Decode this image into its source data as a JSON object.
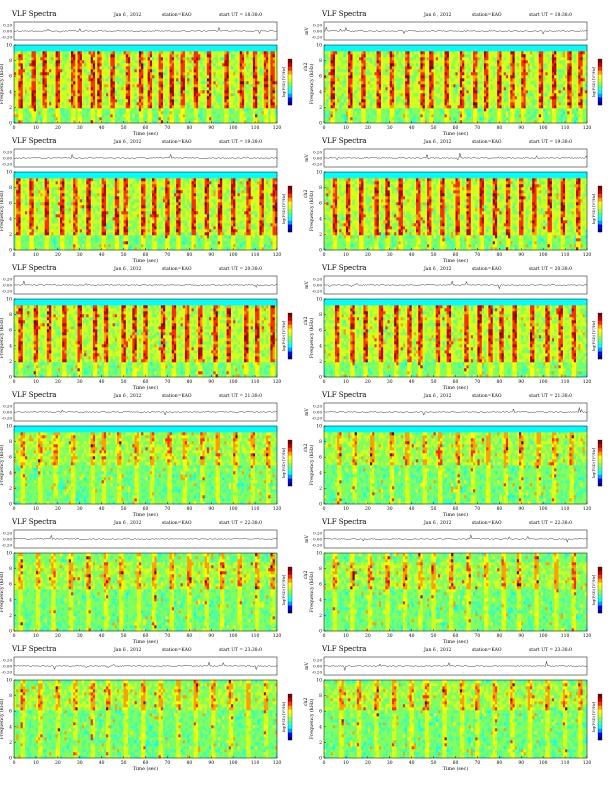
{
  "page_title": "VLF Spectra",
  "colors": {
    "colormap": [
      "#00007f",
      "#0000ff",
      "#00a0ff",
      "#00ffff",
      "#40ffb0",
      "#80ff60",
      "#d0ff20",
      "#ffff00",
      "#ffa000",
      "#ff3000",
      "#c00000",
      "#7f0000"
    ],
    "background_band": "#3cd0e8",
    "trace": "#000000"
  },
  "chart_data": [
    {
      "type": "heatmap",
      "title": "VLF Spectra",
      "date": "Jan 6 , 2012",
      "station": "station=KAO",
      "start": "start UT = 18:38:0",
      "xlabel": "Time (sec)",
      "ylabel": "Frequency (kHz)",
      "top_ylabel": "mV",
      "top_ticks": [
        "0.20",
        "0.00",
        "-0.20"
      ],
      "side_label": "ch1",
      "colorbar_label": "log(PSD) [V²/Hz]",
      "xlim": [
        0,
        120
      ],
      "ylim": [
        0,
        10
      ],
      "xticks": [
        0,
        10,
        20,
        30,
        40,
        50,
        60,
        70,
        80,
        90,
        100,
        110,
        120
      ],
      "yticks": [
        0,
        2,
        4,
        6,
        8,
        10
      ],
      "active_upper_kHz": 9.4,
      "dominant_band_kHz": [
        2.0,
        9.4
      ],
      "event_times_sec": [
        3,
        9,
        14,
        20,
        27,
        30,
        36,
        39,
        45,
        52,
        58,
        62,
        67,
        72,
        77,
        83,
        89,
        97,
        104,
        110,
        115,
        118
      ],
      "intensity": "high"
    },
    {
      "type": "heatmap",
      "title": "VLF Spectra",
      "date": "Jan 6 , 2012",
      "station": "station=KAO",
      "start": "start UT = 18:38:0",
      "xlabel": "Time (sec)",
      "ylabel": "Frequency (kHz)",
      "top_ylabel": "mV",
      "top_ticks": [
        "0.20",
        "0.00",
        "-0.20"
      ],
      "side_label": "ch2",
      "colorbar_label": "log(PSD) [V²/Hz]",
      "xlim": [
        0,
        120
      ],
      "ylim": [
        0,
        10
      ],
      "xticks": [
        0,
        10,
        20,
        30,
        40,
        50,
        60,
        70,
        80,
        90,
        100,
        110,
        120
      ],
      "yticks": [
        0,
        2,
        4,
        6,
        8,
        10
      ],
      "active_upper_kHz": 9.4,
      "dominant_band_kHz": [
        2.0,
        9.4
      ],
      "event_times_sec": [
        4,
        12,
        18,
        25,
        31,
        38,
        45,
        49,
        56,
        63,
        69,
        74,
        80,
        86,
        91,
        99,
        105,
        112,
        117
      ],
      "intensity": "high"
    },
    {
      "type": "heatmap",
      "title": "VLF Spectra",
      "date": "Jan 6 , 2012",
      "station": "station=KAO",
      "start": "start UT = 19:38:0",
      "xlabel": "Time (sec)",
      "ylabel": "Frequency (kHz)",
      "top_ylabel": "mV",
      "top_ticks": [
        "0.20",
        "0.00",
        "-0.20"
      ],
      "side_label": "ch1",
      "colorbar_label": "log(PSD) [V²/Hz]",
      "xlim": [
        0,
        120
      ],
      "ylim": [
        0,
        10
      ],
      "xticks": [
        0,
        10,
        20,
        30,
        40,
        50,
        60,
        70,
        80,
        90,
        100,
        110,
        120
      ],
      "yticks": [
        0,
        2,
        4,
        6,
        8,
        10
      ],
      "active_upper_kHz": 9.4,
      "dominant_band_kHz": [
        2.0,
        9.4
      ],
      "event_times_sec": [
        2,
        8,
        15,
        22,
        28,
        34,
        41,
        47,
        51,
        59,
        64,
        70,
        75,
        82,
        88,
        94,
        100,
        107,
        113,
        119
      ],
      "intensity": "high"
    },
    {
      "type": "heatmap",
      "title": "VLF Spectra",
      "date": "Jan 6 , 2012",
      "station": "station=KAO",
      "start": "start UT = 19:38:0",
      "xlabel": "Time (sec)",
      "ylabel": "Frequency (kHz)",
      "top_ylabel": "mV",
      "top_ticks": [
        "0.20",
        "0.00",
        "-0.20"
      ],
      "side_label": "ch2",
      "colorbar_label": "log(PSD) [V²/Hz]",
      "xlim": [
        0,
        120
      ],
      "ylim": [
        0,
        10
      ],
      "xticks": [
        0,
        10,
        20,
        30,
        40,
        50,
        60,
        70,
        80,
        90,
        100,
        110,
        120
      ],
      "yticks": [
        0,
        2,
        4,
        6,
        8,
        10
      ],
      "active_upper_kHz": 9.4,
      "dominant_band_kHz": [
        2.0,
        9.4
      ],
      "event_times_sec": [
        5,
        11,
        17,
        24,
        29,
        35,
        43,
        48,
        54,
        61,
        66,
        72,
        78,
        84,
        90,
        96,
        103,
        109,
        116
      ],
      "intensity": "high"
    },
    {
      "type": "heatmap",
      "title": "VLF Spectra",
      "date": "Jan 6 , 2012",
      "station": "station=KAO",
      "start": "start UT = 20:38:0",
      "xlabel": "Time (sec)",
      "ylabel": "Frequency (kHz)",
      "top_ylabel": "mV",
      "top_ticks": [
        "0.20",
        "0.00",
        "-0.20"
      ],
      "side_label": "ch1",
      "colorbar_label": "log(PSD) [V²/Hz]",
      "xlim": [
        0,
        120
      ],
      "ylim": [
        0,
        10
      ],
      "xticks": [
        0,
        10,
        20,
        30,
        40,
        50,
        60,
        70,
        80,
        90,
        100,
        110,
        120
      ],
      "yticks": [
        0,
        2,
        4,
        6,
        8,
        10
      ],
      "active_upper_kHz": 9.4,
      "dominant_band_kHz": [
        2.0,
        9.4
      ],
      "event_times_sec": [
        3,
        10,
        16,
        23,
        30,
        37,
        42,
        50,
        55,
        60,
        68,
        73,
        79,
        85,
        92,
        98,
        106,
        111,
        118
      ],
      "intensity": "high"
    },
    {
      "type": "heatmap",
      "title": "VLF Spectra",
      "date": "Jan 6 , 2012",
      "station": "station=KAO",
      "start": "start UT = 20:38:0",
      "xlabel": "Time (sec)",
      "ylabel": "Frequency (kHz)",
      "top_ylabel": "mV",
      "top_ticks": [
        "0.20",
        "0.00",
        "-0.20"
      ],
      "side_label": "ch2",
      "colorbar_label": "log(PSD) [V²/Hz]",
      "xlim": [
        0,
        120
      ],
      "ylim": [
        0,
        10
      ],
      "xticks": [
        0,
        10,
        20,
        30,
        40,
        50,
        60,
        70,
        80,
        90,
        100,
        110,
        120
      ],
      "yticks": [
        0,
        2,
        4,
        6,
        8,
        10
      ],
      "active_upper_kHz": 9.4,
      "dominant_band_kHz": [
        2.0,
        9.4
      ],
      "event_times_sec": [
        6,
        13,
        19,
        26,
        33,
        39,
        44,
        52,
        57,
        65,
        71,
        76,
        81,
        87,
        95,
        102,
        108,
        114
      ],
      "intensity": "high"
    },
    {
      "type": "heatmap",
      "title": "VLF Spectra",
      "date": "Jan 6 , 2012",
      "station": "station=KAO",
      "start": "start UT = 21:38:0",
      "xlabel": "Time (sec)",
      "ylabel": "Frequency (kHz)",
      "top_ylabel": "mV",
      "top_ticks": [
        "0.20",
        "0.00",
        "-0.20"
      ],
      "side_label": "ch1",
      "colorbar_label": "log(PSD) [V²/Hz]",
      "xlim": [
        0,
        120
      ],
      "ylim": [
        0,
        10
      ],
      "xticks": [
        0,
        10,
        20,
        30,
        40,
        50,
        60,
        70,
        80,
        90,
        100,
        110,
        120
      ],
      "yticks": [
        0,
        2,
        4,
        6,
        8,
        10
      ],
      "active_upper_kHz": 9.4,
      "dominant_band_kHz": [
        5.0,
        9.4
      ],
      "event_times_sec": [
        4,
        12,
        19,
        27,
        36,
        41,
        48,
        56,
        63,
        71,
        78,
        86,
        93,
        101,
        109,
        116
      ],
      "intensity": "medium"
    },
    {
      "type": "heatmap",
      "title": "VLF Spectra",
      "date": "Jan 6 , 2012",
      "station": "station=KAO",
      "start": "start UT = 21:38:0",
      "xlabel": "Time (sec)",
      "ylabel": "Frequency (kHz)",
      "top_ylabel": "mV",
      "top_ticks": [
        "0.20",
        "0.00",
        "-0.20"
      ],
      "side_label": "ch2",
      "colorbar_label": "log(PSD) [V²/Hz]",
      "xlim": [
        0,
        120
      ],
      "ylim": [
        0,
        10
      ],
      "xticks": [
        0,
        10,
        20,
        30,
        40,
        50,
        60,
        70,
        80,
        90,
        100,
        110,
        120
      ],
      "yticks": [
        0,
        2,
        4,
        6,
        8,
        10
      ],
      "active_upper_kHz": 9.4,
      "dominant_band_kHz": [
        5.0,
        9.4
      ],
      "event_times_sec": [
        7,
        14,
        22,
        31,
        38,
        46,
        53,
        61,
        68,
        75,
        83,
        90,
        98,
        105,
        113
      ],
      "intensity": "medium"
    },
    {
      "type": "heatmap",
      "title": "VLF Spectra",
      "date": "Jan 6 , 2012",
      "station": "station=KAO",
      "start": "start UT = 22:38:0",
      "xlabel": "Time (sec)",
      "ylabel": "Frequency (kHz)",
      "top_ylabel": "mV",
      "top_ticks": [
        "0.20",
        "0.00",
        "-0.20"
      ],
      "side_label": "ch1",
      "colorbar_label": "log(PSD) [V²/Hz]",
      "xlim": [
        0,
        120
      ],
      "ylim": [
        0,
        10
      ],
      "xticks": [
        0,
        10,
        20,
        30,
        40,
        50,
        60,
        70,
        80,
        90,
        100,
        110,
        120
      ],
      "yticks": [
        0,
        2,
        4,
        6,
        8,
        10
      ],
      "active_upper_kHz": 10,
      "dominant_band_kHz": [
        5.5,
        9.0
      ],
      "event_times_sec": [
        3,
        11,
        18,
        26,
        34,
        42,
        49,
        57,
        64,
        72,
        80,
        88,
        95,
        103,
        111,
        118
      ],
      "intensity": "medium"
    },
    {
      "type": "heatmap",
      "title": "VLF Spectra",
      "date": "Jan 6 , 2012",
      "station": "station=KAO",
      "start": "start UT = 22:38:0",
      "xlabel": "Time (sec)",
      "ylabel": "Frequency (kHz)",
      "top_ylabel": "mV",
      "top_ticks": [
        "0.20",
        "0.00",
        "-0.20"
      ],
      "side_label": "ch2",
      "colorbar_label": "log(PSD) [V²/Hz]",
      "xlim": [
        0,
        120
      ],
      "ylim": [
        0,
        10
      ],
      "xticks": [
        0,
        10,
        20,
        30,
        40,
        50,
        60,
        70,
        80,
        90,
        100,
        110,
        120
      ],
      "yticks": [
        0,
        2,
        4,
        6,
        8,
        10
      ],
      "active_upper_kHz": 10,
      "dominant_band_kHz": [
        5.5,
        9.0
      ],
      "event_times_sec": [
        5,
        13,
        21,
        29,
        37,
        44,
        50,
        58,
        66,
        74,
        82,
        89,
        97,
        106,
        114
      ],
      "intensity": "medium"
    },
    {
      "type": "heatmap",
      "title": "VLF Spectra",
      "date": "Jan 6 , 2012",
      "station": "station=KAO",
      "start": "start UT = 23:38:0",
      "xlabel": "Time (sec)",
      "ylabel": "Frequency (kHz)",
      "top_ylabel": "mV",
      "top_ticks": [
        "0.20",
        "0.00",
        "-0.20"
      ],
      "side_label": "ch1",
      "colorbar_label": "log(PSD) [V²/Hz]",
      "xlim": [
        0,
        120
      ],
      "ylim": [
        0,
        10
      ],
      "xticks": [
        0,
        10,
        20,
        30,
        40,
        50,
        60,
        70,
        80,
        90,
        100,
        110,
        120
      ],
      "yticks": [
        0,
        2,
        4,
        6,
        8,
        10
      ],
      "active_upper_kHz": 10,
      "dominant_band_kHz": [
        6.0,
        9.5
      ],
      "event_times_sec": [
        4,
        12,
        20,
        28,
        36,
        43,
        51,
        59,
        67,
        75,
        83,
        91,
        99,
        107,
        115
      ],
      "intensity": "medium"
    },
    {
      "type": "heatmap",
      "title": "VLF Spectra",
      "date": "Jan 6 , 2012",
      "station": "station=KAO",
      "start": "start UT = 23:38:0",
      "xlabel": "Time (sec)",
      "ylabel": "Frequency (kHz)",
      "top_ylabel": "mV",
      "top_ticks": [
        "0.20",
        "0.00",
        "-0.20"
      ],
      "side_label": "ch2",
      "colorbar_label": "log(PSD) [V²/Hz]",
      "xlim": [
        0,
        120
      ],
      "ylim": [
        0,
        10
      ],
      "xticks": [
        0,
        10,
        20,
        30,
        40,
        50,
        60,
        70,
        80,
        90,
        100,
        110,
        120
      ],
      "yticks": [
        0,
        2,
        4,
        6,
        8,
        10
      ],
      "active_upper_kHz": 10,
      "dominant_band_kHz": [
        6.0,
        9.5
      ],
      "event_times_sec": [
        8,
        16,
        24,
        32,
        40,
        47,
        55,
        63,
        70,
        78,
        86,
        94,
        102,
        110,
        117
      ],
      "intensity": "medium"
    }
  ]
}
